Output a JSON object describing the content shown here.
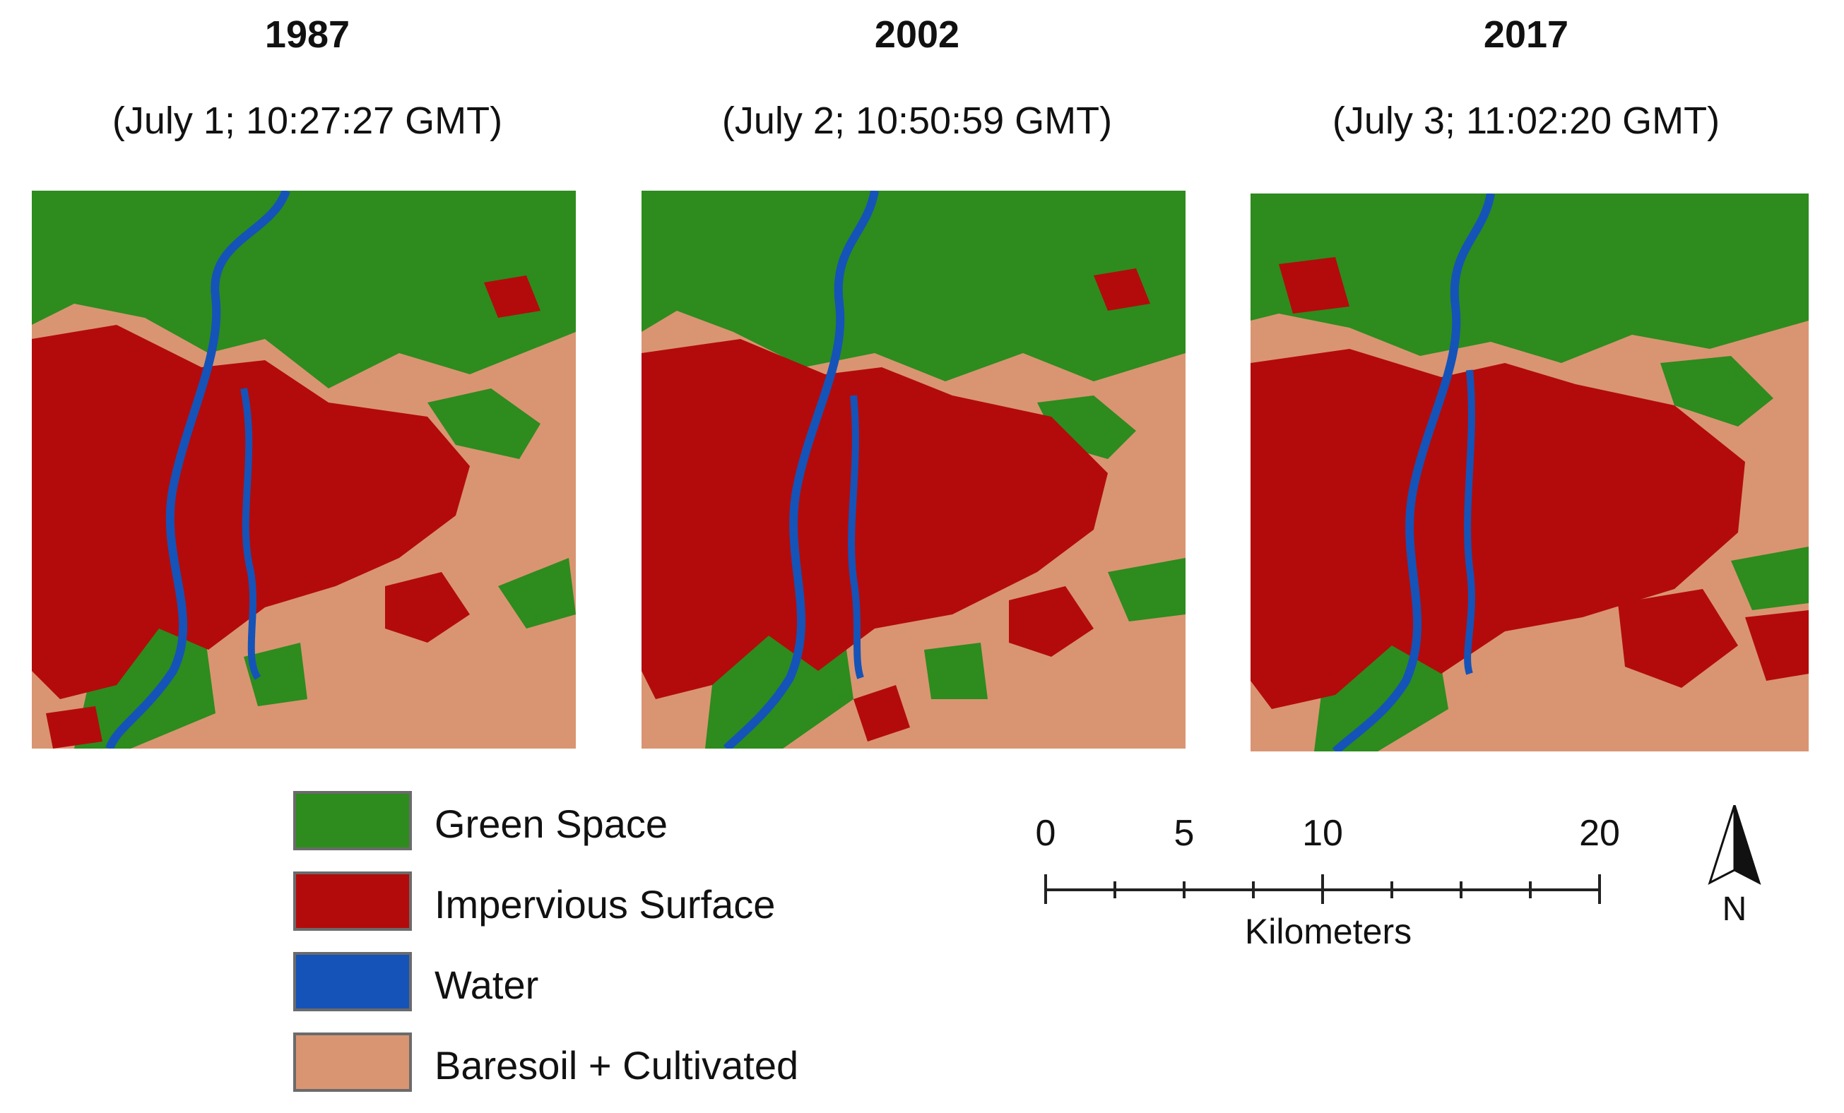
{
  "panels": [
    {
      "year": "1987",
      "date": "(July 1; 10:27:27 GMT)"
    },
    {
      "year": "2002",
      "date": "(July 2; 10:50:59 GMT)"
    },
    {
      "year": "2017",
      "date": "(July 3; 11:02:20 GMT)"
    }
  ],
  "legend": [
    {
      "label": "Green Space",
      "color": "#2e8b1e"
    },
    {
      "label": "Impervious Surface",
      "color": "#b30b0b"
    },
    {
      "label": "Water",
      "color": "#1553b8"
    },
    {
      "label": "Baresoil + Cultivated",
      "color": "#d99572"
    }
  ],
  "scale": {
    "tick_labels": [
      "0",
      "5",
      "10",
      "20"
    ],
    "units": "Kilometers"
  },
  "north_arrow": {
    "label": "N"
  }
}
